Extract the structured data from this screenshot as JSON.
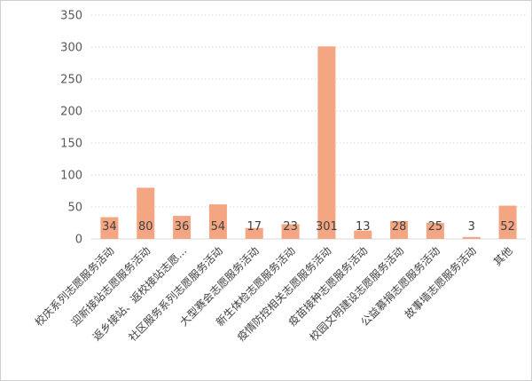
{
  "chart_data": {
    "type": "bar",
    "title": "",
    "xlabel": "",
    "ylabel": "",
    "ylim": [
      0,
      350
    ],
    "yticks": [
      0,
      50,
      100,
      150,
      200,
      250,
      300,
      350
    ],
    "grid": true,
    "legend": "none",
    "bar_color": "#f4a582",
    "categories": [
      "校庆系列志愿服务活动",
      "迎新接站志愿服务活动",
      "返乡接站、返校接站志愿...",
      "社区服务系列志愿服务活动",
      "大型赛会志愿服务活动",
      "新生体检志愿服务活动",
      "疫情防控相关志愿服务活动",
      "疫苗接种志愿服务活动",
      "校园文明建设志愿服务活动",
      "公益慕捐志愿服务活动",
      "故事墙志愿服务活动",
      "其他"
    ],
    "values": [
      34,
      80,
      36,
      54,
      17,
      23,
      301,
      13,
      28,
      25,
      3,
      52
    ]
  }
}
